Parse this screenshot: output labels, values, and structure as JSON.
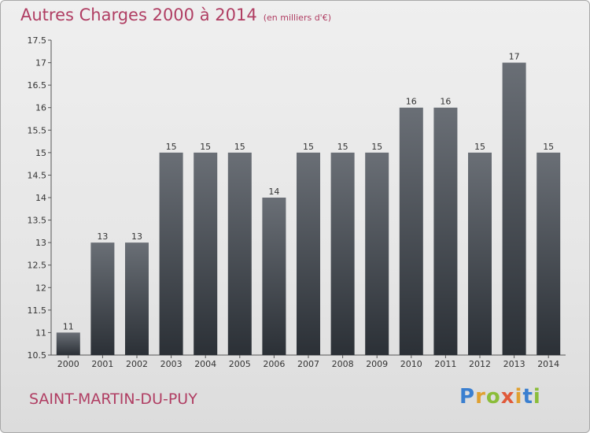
{
  "header": {
    "title": "Autres Charges 2000 à 2014",
    "subtitle": "(en milliers d'€)"
  },
  "footer": {
    "commune": "SAINT-MARTIN-DU-PUY",
    "logo": "Proxiti"
  },
  "colors": {
    "title": "#b03e63",
    "bar_top": "#6a6f76",
    "bar_bottom": "#2b3036"
  },
  "chart_data": {
    "type": "bar",
    "title": "Autres Charges 2000 à 2014",
    "subtitle": "(en milliers d'€)",
    "xlabel": "",
    "ylabel": "",
    "categories": [
      "2000",
      "2001",
      "2002",
      "2003",
      "2004",
      "2005",
      "2006",
      "2007",
      "2008",
      "2009",
      "2010",
      "2011",
      "2012",
      "2013",
      "2014"
    ],
    "values": [
      11,
      13,
      13,
      15,
      15,
      15,
      14,
      15,
      15,
      15,
      16,
      16,
      15,
      17,
      15
    ],
    "ylim": [
      10.5,
      17.5
    ],
    "yticks": [
      10.5,
      11,
      11.5,
      12,
      12.5,
      13,
      13.5,
      14,
      14.5,
      15,
      15.5,
      16,
      16.5,
      17,
      17.5
    ],
    "grid": false,
    "legend": "none"
  }
}
